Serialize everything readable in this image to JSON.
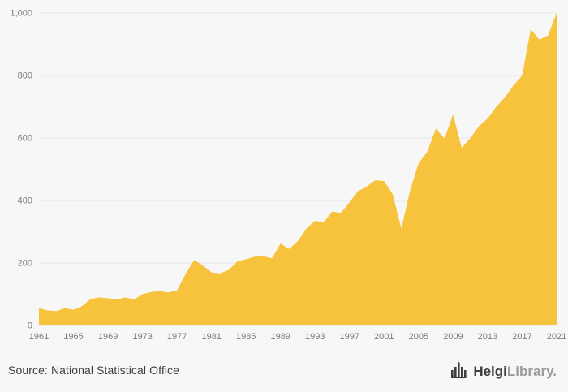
{
  "chart_data": {
    "type": "area",
    "title": "",
    "xlabel": "",
    "ylabel": "",
    "x": [
      1961,
      1962,
      1963,
      1964,
      1965,
      1966,
      1967,
      1968,
      1969,
      1970,
      1971,
      1972,
      1973,
      1974,
      1975,
      1976,
      1977,
      1978,
      1979,
      1980,
      1981,
      1982,
      1983,
      1984,
      1985,
      1986,
      1987,
      1988,
      1989,
      1990,
      1991,
      1992,
      1993,
      1994,
      1995,
      1996,
      1997,
      1998,
      1999,
      2000,
      2001,
      2002,
      2003,
      2004,
      2005,
      2006,
      2007,
      2008,
      2009,
      2010,
      2011,
      2012,
      2013,
      2014,
      2015,
      2016,
      2017,
      2018,
      2019,
      2020,
      2021
    ],
    "values": [
      55,
      48,
      46,
      55,
      50,
      62,
      85,
      90,
      87,
      83,
      90,
      83,
      100,
      107,
      110,
      106,
      112,
      165,
      210,
      192,
      170,
      167,
      178,
      205,
      212,
      220,
      222,
      215,
      262,
      245,
      270,
      310,
      335,
      330,
      365,
      360,
      395,
      430,
      445,
      465,
      462,
      420,
      310,
      430,
      520,
      555,
      630,
      598,
      675,
      568,
      600,
      638,
      662,
      700,
      730,
      768,
      800,
      948,
      915,
      928,
      1000
    ],
    "ylim": [
      0,
      1000
    ],
    "yticks": [
      0,
      200,
      400,
      600,
      800,
      1000
    ],
    "xticks": [
      1961,
      1965,
      1969,
      1973,
      1977,
      1981,
      1985,
      1989,
      1993,
      1997,
      2001,
      2005,
      2009,
      2013,
      2017,
      2021
    ],
    "legend": [],
    "grid": "horizontal",
    "area_color": "#f8c33c",
    "grid_color": "#e4e4e4",
    "axis_text_color": "#7b7b7b",
    "background": "#f7f7f7"
  },
  "footer": {
    "source": "Source: National Statistical Office",
    "logo": {
      "brand_primary": "Helgi",
      "brand_secondary": "Library",
      "suffix": "."
    }
  }
}
